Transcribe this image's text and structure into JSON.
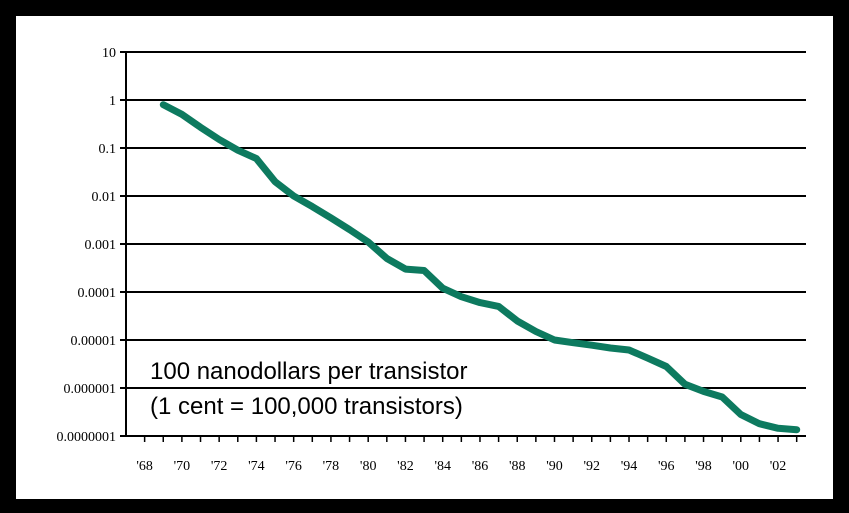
{
  "chart_data": {
    "type": "line",
    "title": "",
    "xlabel": "",
    "ylabel": "",
    "yscale": "log",
    "ylim": [
      1e-07,
      10
    ],
    "xlim": [
      1967,
      2003.5
    ],
    "grid": "horizontal",
    "colors": {
      "line": "#0d7a5f",
      "grid": "#000000",
      "background": "#ffffff",
      "frame": "#000000"
    },
    "y_ticks": [
      {
        "value": 10,
        "label": "10"
      },
      {
        "value": 1,
        "label": "1"
      },
      {
        "value": 0.1,
        "label": "0.1"
      },
      {
        "value": 0.01,
        "label": "0.01"
      },
      {
        "value": 0.001,
        "label": "0.001"
      },
      {
        "value": 0.0001,
        "label": "0.0001"
      },
      {
        "value": 1e-05,
        "label": "0.00001"
      },
      {
        "value": 1e-06,
        "label": "0.000001"
      },
      {
        "value": 1e-07,
        "label": "0.0000001"
      }
    ],
    "x_ticks": [
      {
        "value": 1968,
        "label": "'68"
      },
      {
        "value": 1970,
        "label": "'70"
      },
      {
        "value": 1972,
        "label": "'72"
      },
      {
        "value": 1974,
        "label": "'74"
      },
      {
        "value": 1976,
        "label": "'76"
      },
      {
        "value": 1978,
        "label": "'78"
      },
      {
        "value": 1980,
        "label": "'80"
      },
      {
        "value": 1982,
        "label": "'82"
      },
      {
        "value": 1984,
        "label": "'84"
      },
      {
        "value": 1986,
        "label": "'86"
      },
      {
        "value": 1988,
        "label": "'88"
      },
      {
        "value": 1990,
        "label": "'90"
      },
      {
        "value": 1992,
        "label": "'92"
      },
      {
        "value": 1994,
        "label": "'94"
      },
      {
        "value": 1996,
        "label": "'96"
      },
      {
        "value": 1998,
        "label": "'98"
      },
      {
        "value": 2000,
        "label": "'00"
      },
      {
        "value": 2002,
        "label": "'02"
      }
    ],
    "series": [
      {
        "x": [
          1969,
          1970,
          1971,
          1972,
          1973,
          1974,
          1975,
          1976,
          1977,
          1978,
          1979,
          1980,
          1981,
          1982,
          1983,
          1984,
          1985,
          1986,
          1987,
          1988,
          1989,
          1990,
          1991,
          1992,
          1993,
          1994,
          1995,
          1996,
          1997,
          1998,
          1999,
          2000,
          2001,
          2002,
          2003
        ],
        "values": [
          0.8,
          0.5,
          0.27,
          0.15,
          0.09,
          0.06,
          0.02,
          0.01,
          0.006,
          0.0035,
          0.002,
          0.0011,
          0.0005,
          0.0003,
          0.00028,
          0.00012,
          8e-05,
          6e-05,
          5e-05,
          2.5e-05,
          1.5e-05,
          1e-05,
          8.8e-06,
          7.8e-06,
          6.8e-06,
          6.2e-06,
          4.2e-06,
          2.8e-06,
          1.2e-06,
          8.5e-07,
          6.5e-07,
          2.8e-07,
          1.8e-07,
          1.45e-07,
          1.35e-07
        ]
      }
    ]
  },
  "annotation": {
    "line1": "100 nanodollars per transistor",
    "line2": "(1 cent = 100,000 transistors)"
  }
}
